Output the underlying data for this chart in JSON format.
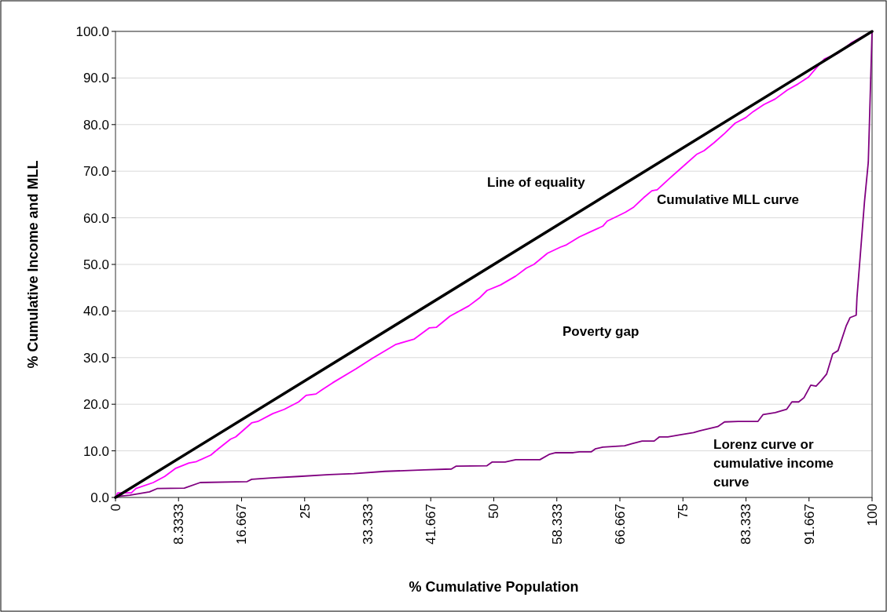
{
  "chart_data": {
    "type": "line",
    "xlabel": "% Cumulative Population",
    "ylabel": "% Cumulative Income and MLL",
    "xlim": [
      0,
      100
    ],
    "ylim": [
      0,
      100
    ],
    "xticks": [
      0,
      {
        "value": 8.3333,
        "label": "8.3333"
      },
      {
        "value": 16.667,
        "label": "16.667"
      },
      25,
      {
        "value": 33.333,
        "label": "33.333"
      },
      {
        "value": 41.667,
        "label": "41.667"
      },
      50,
      {
        "value": 58.333,
        "label": "58.333"
      },
      {
        "value": 66.667,
        "label": "66.667"
      },
      75,
      {
        "value": 83.333,
        "label": "83.333"
      },
      {
        "value": 91.667,
        "label": "91.667"
      },
      100
    ],
    "yticks": [
      {
        "value": 0,
        "label": "0.0"
      },
      {
        "value": 10,
        "label": "10.0"
      },
      {
        "value": 20,
        "label": "20.0"
      },
      {
        "value": 30,
        "label": "30.0"
      },
      {
        "value": 40,
        "label": "40.0"
      },
      {
        "value": 50,
        "label": "50.0"
      },
      {
        "value": 60,
        "label": "60.0"
      },
      {
        "value": 70,
        "label": "70.0"
      },
      {
        "value": 80,
        "label": "80.0"
      },
      {
        "value": 90,
        "label": "90.0"
      },
      {
        "value": 100,
        "label": "100.0"
      }
    ],
    "grid": "y",
    "marker": "none",
    "series": [
      {
        "color": "#800080",
        "x": [
          0,
          0.8,
          1.9,
          4.5,
          5.5,
          9.1,
          11.2,
          17.4,
          18,
          20.6,
          24.2,
          28.3,
          31.5,
          35.6,
          40.8,
          44.4,
          45,
          49.1,
          49.8,
          51.5,
          52.9,
          56.1,
          57.4,
          58.2,
          60.5,
          61.3,
          62.9,
          63.4,
          64.4,
          67.3,
          68.2,
          69.6,
          71.2,
          71.9,
          73,
          74.8,
          76.4,
          77.2,
          79.6,
          80.5,
          82.3,
          84.9,
          85.6,
          87.2,
          88.7,
          89.4,
          90.3,
          91,
          91.9,
          92.6,
          93.3,
          94,
          94.8,
          95.5,
          96.6,
          97.1,
          97.9,
          98,
          99,
          99.5,
          100
        ],
        "values": [
          0,
          0.3,
          0.5,
          1.2,
          1.9,
          2,
          3.2,
          3.4,
          3.9,
          4.2,
          4.5,
          4.9,
          5.1,
          5.6,
          5.9,
          6.1,
          6.7,
          6.8,
          7.6,
          7.6,
          8.1,
          8.1,
          9.3,
          9.6,
          9.6,
          9.8,
          9.8,
          10.4,
          10.8,
          11.1,
          11.5,
          12.1,
          12.1,
          13,
          13,
          13.5,
          13.9,
          14.3,
          15.2,
          16.2,
          16.3,
          16.3,
          17.8,
          18.2,
          18.9,
          20.5,
          20.5,
          21.4,
          24.1,
          23.9,
          25.1,
          26.5,
          30.8,
          31.5,
          36.9,
          38.6,
          39.1,
          42.8,
          63.5,
          71.9,
          100
        ]
      },
      {
        "color": "#ff00ff",
        "x": [
          0,
          0.3,
          2.1,
          2.7,
          5,
          6.5,
          7.9,
          9.7,
          10.7,
          12.6,
          13.5,
          15.2,
          15.9,
          18,
          18.8,
          20.8,
          22.3,
          24.2,
          25.2,
          26.5,
          27.3,
          28.7,
          31.8,
          33.9,
          37,
          39.5,
          41.5,
          42.4,
          44.2,
          46.7,
          48.1,
          49.1,
          50.9,
          52.9,
          54.3,
          55.3,
          57.1,
          58.8,
          59.6,
          61.3,
          62.9,
          64.4,
          65,
          66.4,
          67.4,
          68.5,
          69.8,
          70.9,
          71.6,
          73.2,
          75,
          76.8,
          77.8,
          79.1,
          80.5,
          81.9,
          83.3,
          84.3,
          85.7,
          87.2,
          88.8,
          90.2,
          91.6,
          92.6,
          93.7,
          95.5,
          97.2,
          100
        ],
        "values": [
          0,
          1,
          1,
          1.9,
          3.2,
          4.5,
          6.2,
          7.4,
          7.7,
          9.1,
          10.3,
          12.5,
          13,
          16,
          16.3,
          18,
          18.9,
          20.5,
          21.9,
          22.2,
          23.1,
          24.6,
          27.6,
          29.8,
          32.8,
          34,
          36.4,
          36.5,
          38.9,
          41.1,
          42.8,
          44.4,
          45.6,
          47.5,
          49.2,
          50,
          52.4,
          53.7,
          54.2,
          55.9,
          57.1,
          58.2,
          59.3,
          60.4,
          61.2,
          62.3,
          64.3,
          65.8,
          66,
          68.4,
          71,
          73.6,
          74.4,
          76.1,
          78.1,
          80.3,
          81.5,
          82.8,
          84.3,
          85.5,
          87.4,
          88.7,
          90.2,
          92.1,
          94.1,
          95.3,
          97.5,
          100
        ]
      },
      {
        "color": "#000000",
        "x": [
          0,
          100
        ],
        "values": [
          0,
          100
        ]
      }
    ],
    "annotations": [
      "Line of equality",
      "Cumulative MLL curve",
      "Poverty gap",
      "Lorenz curve or cumulative income curve"
    ]
  }
}
